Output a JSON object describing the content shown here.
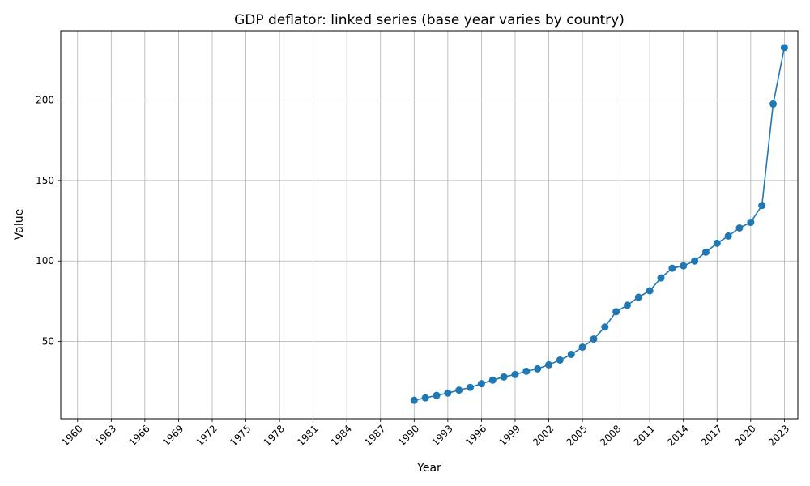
{
  "chart_data": {
    "type": "line",
    "title": "GDP deflator: linked series (base year varies by country)",
    "xlabel": "Year",
    "ylabel": "Value",
    "xlim": [
      1960,
      2023
    ],
    "ylim": [
      2,
      243
    ],
    "x_ticks": [
      1960,
      1963,
      1966,
      1969,
      1972,
      1975,
      1978,
      1981,
      1984,
      1987,
      1990,
      1993,
      1996,
      1999,
      2002,
      2005,
      2008,
      2011,
      2014,
      2017,
      2020,
      2023
    ],
    "y_ticks": [
      50,
      100,
      150,
      200
    ],
    "grid": true,
    "series_color": "#1f77b4",
    "x": [
      1990,
      1991,
      1992,
      1993,
      1994,
      1995,
      1996,
      1997,
      1998,
      1999,
      2000,
      2001,
      2002,
      2003,
      2004,
      2005,
      2006,
      2007,
      2008,
      2009,
      2010,
      2011,
      2012,
      2013,
      2014,
      2015,
      2016,
      2017,
      2018,
      2019,
      2020,
      2021,
      2022,
      2023
    ],
    "values": [
      13.5,
      15.0,
      16.5,
      18.0,
      19.8,
      21.5,
      23.8,
      26.0,
      28.0,
      29.5,
      31.5,
      33.0,
      35.5,
      38.5,
      42.0,
      46.5,
      51.5,
      59.0,
      68.5,
      72.5,
      77.5,
      81.5,
      89.5,
      95.5,
      97.0,
      100.0,
      105.5,
      111.0,
      115.5,
      120.5,
      124.0,
      134.5,
      197.5,
      232.5
    ]
  }
}
